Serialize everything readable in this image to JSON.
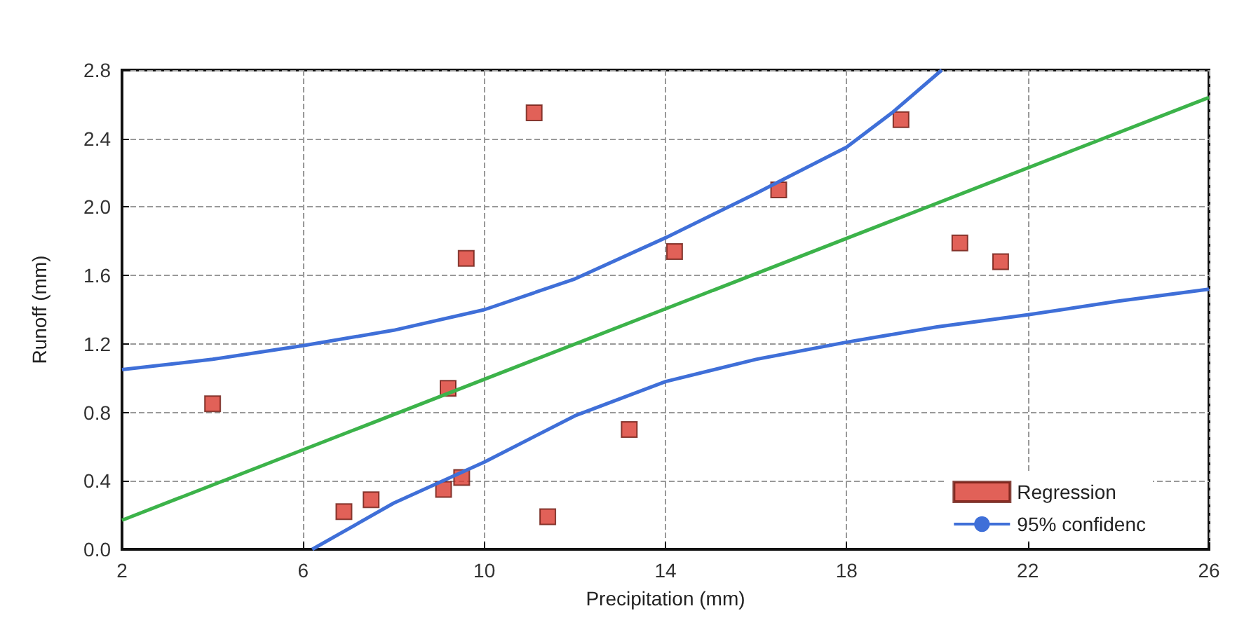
{
  "chart_data": {
    "type": "scatter",
    "xlabel": "Precipitation (mm)",
    "ylabel": "Runoff (mm)",
    "xlim": [
      2,
      26
    ],
    "xticks": [
      2,
      6,
      10,
      14,
      18,
      22,
      26
    ],
    "ylim": [
      0,
      2.8
    ],
    "yticks": [
      {
        "value": 0,
        "label": "0.0"
      },
      {
        "value": 0.4,
        "label": "0.4"
      },
      {
        "value": 0.8,
        "label": "0.8"
      },
      {
        "value": 1.2,
        "label": "1.2"
      },
      {
        "value": 1.6,
        "label": "1.6"
      },
      {
        "value": 2.0,
        "label": "2.0"
      },
      {
        "value": 2.4,
        "label": "2.4"
      },
      {
        "value": 2.8,
        "label": "2.8"
      }
    ],
    "grid": true,
    "legend": "bottom right",
    "marker": "square",
    "series": [
      {
        "name": "Regression",
        "color": "#d9392e",
        "x": [
          4.0,
          6.9,
          7.5,
          9.2,
          9.1,
          9.5,
          9.6,
          11.1,
          11.4,
          13.2,
          14.2,
          16.5,
          19.2,
          20.5,
          21.4
        ],
        "values": [
          0.85,
          0.22,
          0.29,
          0.94,
          0.35,
          0.42,
          1.7,
          2.55,
          0.19,
          0.7,
          1.74,
          2.1,
          2.51,
          1.79,
          1.68
        ]
      },
      {
        "type": "line",
        "color": "#3cb34a",
        "marker": "none",
        "x": [
          2,
          26
        ],
        "values": [
          0.17,
          2.64
        ]
      },
      {
        "name": "95% confidenc",
        "type": "line",
        "color": "#3f6fd8",
        "marker": "none",
        "x": [
          2,
          4,
          6,
          8,
          10,
          12,
          14,
          16,
          18,
          19,
          20.1
        ],
        "values": [
          1.05,
          1.11,
          1.19,
          1.28,
          1.4,
          1.58,
          1.82,
          2.08,
          2.35,
          2.55,
          2.8
        ]
      },
      {
        "type": "line",
        "color": "#3f6fd8",
        "marker": "none",
        "x": [
          6.2,
          8,
          10,
          12,
          14,
          16,
          18,
          20,
          22,
          24,
          26
        ],
        "values": [
          0,
          0.27,
          0.51,
          0.78,
          0.98,
          1.11,
          1.21,
          1.3,
          1.37,
          1.45,
          1.52
        ]
      }
    ]
  }
}
